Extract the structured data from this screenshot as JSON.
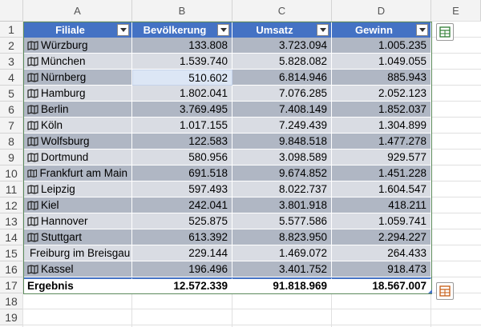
{
  "columns": [
    "A",
    "B",
    "C",
    "D",
    "E"
  ],
  "rows": [
    "1",
    "2",
    "3",
    "4",
    "5",
    "6",
    "7",
    "8",
    "9",
    "10",
    "11",
    "12",
    "13",
    "14",
    "15",
    "16",
    "17",
    "18",
    "19"
  ],
  "headers": [
    "Filiale",
    "Bevölkerung",
    "Umsatz",
    "Gewinn"
  ],
  "data": [
    {
      "filiale": "Würzburg",
      "bev": "133.808",
      "umsatz": "3.723.094",
      "gewinn": "1.005.235"
    },
    {
      "filiale": "München",
      "bev": "1.539.740",
      "umsatz": "5.828.082",
      "gewinn": "1.049.055"
    },
    {
      "filiale": "Nürnberg",
      "bev": "510.602",
      "umsatz": "6.814.946",
      "gewinn": "885.943"
    },
    {
      "filiale": "Hamburg",
      "bev": "1.802.041",
      "umsatz": "7.076.285",
      "gewinn": "2.052.123"
    },
    {
      "filiale": "Berlin",
      "bev": "3.769.495",
      "umsatz": "7.408.149",
      "gewinn": "1.852.037"
    },
    {
      "filiale": "Köln",
      "bev": "1.017.155",
      "umsatz": "7.249.439",
      "gewinn": "1.304.899"
    },
    {
      "filiale": "Wolfsburg",
      "bev": "122.583",
      "umsatz": "9.848.518",
      "gewinn": "1.477.278"
    },
    {
      "filiale": "Dortmund",
      "bev": "580.956",
      "umsatz": "3.098.589",
      "gewinn": "929.577"
    },
    {
      "filiale": "Frankfurt am Main",
      "bev": "691.518",
      "umsatz": "9.674.852",
      "gewinn": "1.451.228"
    },
    {
      "filiale": "Leipzig",
      "bev": "597.493",
      "umsatz": "8.022.737",
      "gewinn": "1.604.547"
    },
    {
      "filiale": "Kiel",
      "bev": "242.041",
      "umsatz": "3.801.918",
      "gewinn": "418.211"
    },
    {
      "filiale": "Hannover",
      "bev": "525.875",
      "umsatz": "5.577.586",
      "gewinn": "1.059.741"
    },
    {
      "filiale": "Stuttgart",
      "bev": "613.392",
      "umsatz": "8.823.950",
      "gewinn": "2.294.227"
    },
    {
      "filiale": "Freiburg im Breisgau",
      "bev": "229.144",
      "umsatz": "1.469.072",
      "gewinn": "264.433"
    },
    {
      "filiale": "Kassel",
      "bev": "196.496",
      "umsatz": "3.401.752",
      "gewinn": "918.473"
    }
  ],
  "total": {
    "label": "Ergebnis",
    "bev": "12.572.339",
    "umsatz": "91.818.969",
    "gewinn": "18.567.007"
  },
  "selected_cell": "B4",
  "colors": {
    "header": "#4472c4",
    "band_dark": "#b0b7c4",
    "band_light": "#d9dce3"
  }
}
